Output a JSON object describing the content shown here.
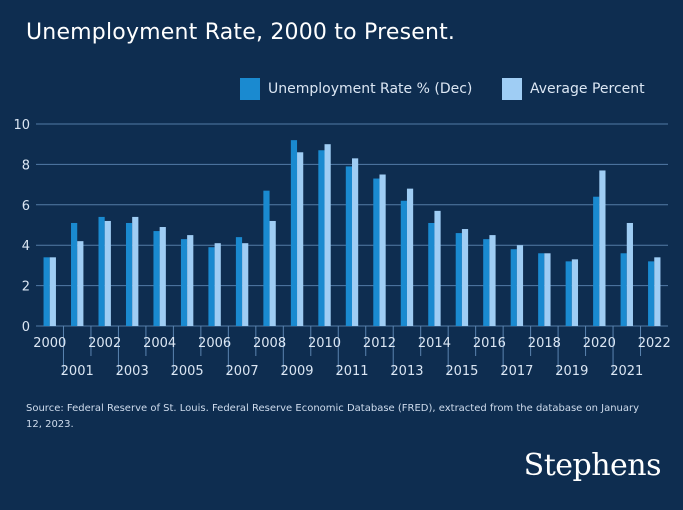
{
  "colors": {
    "background": "#0e2d50",
    "series1": "#1a8ad0",
    "series2": "#9fcdf4",
    "grid": "#5b84b0",
    "text": "#dbe6f3"
  },
  "chart_data": {
    "type": "bar",
    "title": "Unemployment Rate, 2000 to Present.",
    "categories": [
      "2000",
      "2001",
      "2002",
      "2003",
      "2004",
      "2005",
      "2006",
      "2007",
      "2008",
      "2009",
      "2010",
      "2011",
      "2012",
      "2013",
      "2014",
      "2015",
      "2016",
      "2017",
      "2018",
      "2019",
      "2020",
      "2021",
      "2022"
    ],
    "series": [
      {
        "name": "Unemployment Rate % (Dec)",
        "color": "#1a8ad0",
        "values": [
          3.4,
          5.1,
          5.4,
          5.1,
          4.7,
          4.3,
          3.9,
          4.4,
          6.7,
          9.2,
          8.7,
          7.9,
          7.3,
          6.2,
          5.1,
          4.6,
          4.3,
          3.8,
          3.6,
          3.2,
          6.4,
          3.6,
          3.2
        ]
      },
      {
        "name": "Average Percent",
        "color": "#9fcdf4",
        "values": [
          3.4,
          4.2,
          5.2,
          5.4,
          4.9,
          4.5,
          4.1,
          4.1,
          5.2,
          8.6,
          9.0,
          8.3,
          7.5,
          6.8,
          5.7,
          4.8,
          4.5,
          4.0,
          3.6,
          3.3,
          7.7,
          5.1,
          3.4
        ]
      }
    ],
    "xlabel": "",
    "ylabel": "",
    "ylim": [
      0,
      10
    ],
    "yticks": [
      "0",
      "2",
      "4",
      "6",
      "8",
      "10"
    ],
    "grid": true,
    "legend_position": "top-right"
  },
  "source": "Source: Federal Reserve of St. Louis. Federal Reserve Economic Database (FRED), extracted from the database on January 12, 2023.",
  "logo": "Stephens"
}
